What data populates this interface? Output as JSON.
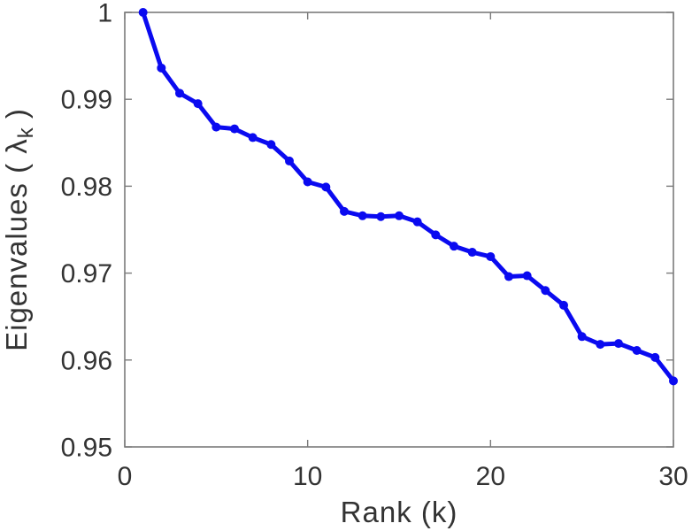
{
  "figure": {
    "background": "#ffffff"
  },
  "chart_data": {
    "type": "line",
    "title": "",
    "xlabel": "Rank (k)",
    "ylabel": "Eigenvalues ( λ_k )",
    "series": [
      {
        "name": "eigenvalues",
        "x": [
          1,
          2,
          3,
          4,
          5,
          6,
          7,
          8,
          9,
          10,
          11,
          12,
          13,
          14,
          15,
          16,
          17,
          18,
          19,
          20,
          21,
          22,
          23,
          24,
          25,
          26,
          27,
          28,
          29,
          30
        ],
        "values": [
          1.0,
          0.9936,
          0.9907,
          0.9895,
          0.9868,
          0.9866,
          0.9856,
          0.9848,
          0.9829,
          0.9805,
          0.9799,
          0.9771,
          0.9766,
          0.9765,
          0.9766,
          0.9759,
          0.9744,
          0.9731,
          0.9724,
          0.9719,
          0.9696,
          0.9697,
          0.968,
          0.9663,
          0.9627,
          0.9618,
          0.9619,
          0.9611,
          0.9603,
          0.9576
        ]
      }
    ],
    "xlim": [
      0,
      30
    ],
    "ylim": [
      0.95,
      1.0
    ],
    "x_ticks": [
      0,
      10,
      20,
      30
    ],
    "x_tick_labels": [
      "0",
      "10",
      "20",
      "30"
    ],
    "y_ticks": [
      0.95,
      0.96,
      0.97,
      0.98,
      0.99,
      1
    ],
    "y_tick_labels": [
      "0.95",
      "0.96",
      "0.97",
      "0.98",
      "0.99",
      "1"
    ],
    "grid": false,
    "legend": null,
    "box": "on",
    "tick_direction": "in",
    "line_color": "#0a0af0",
    "marker": "circle",
    "marker_color": "#0a0af0",
    "axis_color": "#7b7b7b",
    "text_color": "#333333"
  }
}
